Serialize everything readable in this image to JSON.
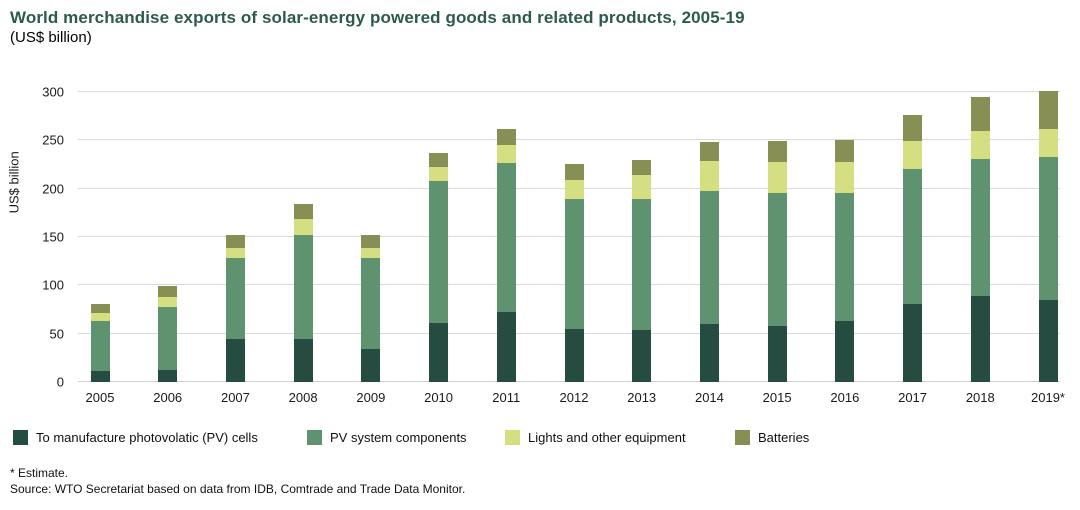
{
  "header": {
    "title": "World merchandise exports of solar-energy powered goods and related products, 2005-19",
    "subtitle": "(US$ billion)"
  },
  "chart_data": {
    "type": "bar",
    "stacked": true,
    "title": "World merchandise exports of solar-energy powered goods and related products, 2005-19 (US$ billion)",
    "xlabel": "",
    "ylabel": "US$ billion",
    "ylim": [
      0,
      300
    ],
    "yticks": [
      0,
      50,
      100,
      150,
      200,
      250,
      300
    ],
    "grid": true,
    "legend_position": "bottom",
    "categories": [
      "2005",
      "2006",
      "2007",
      "2008",
      "2009",
      "2010",
      "2011",
      "2012",
      "2013",
      "2014",
      "2015",
      "2016",
      "2017",
      "2018",
      "2019*"
    ],
    "series": [
      {
        "name": "To manufacture photovolatic (PV) cells",
        "color": "#264c41",
        "values": [
          11,
          12,
          44,
          45,
          34,
          61,
          72,
          55,
          54,
          60,
          58,
          63,
          81,
          89,
          85
        ]
      },
      {
        "name": "PV system components",
        "color": "#5f936f",
        "values": [
          52,
          66,
          84,
          107,
          94,
          147,
          155,
          134,
          135,
          138,
          138,
          133,
          139,
          142,
          148
        ]
      },
      {
        "name": "Lights and other equipment",
        "color": "#d5de81",
        "values": [
          8,
          10,
          11,
          17,
          11,
          14,
          18,
          20,
          25,
          31,
          32,
          32,
          29,
          29,
          29
        ]
      },
      {
        "name": "Batteries",
        "color": "#878f55",
        "values": [
          10,
          11,
          13,
          15,
          13,
          15,
          17,
          17,
          16,
          19,
          21,
          22,
          27,
          35,
          39
        ]
      }
    ],
    "totals": [
      81,
      99,
      152,
      184,
      152,
      237,
      262,
      226,
      230,
      248,
      249,
      250,
      276,
      295,
      301
    ]
  },
  "footnotes": {
    "estimate": "* Estimate.",
    "source": "Source: WTO Secretariat based on data from IDB, Comtrade and Trade Data Monitor."
  },
  "colors": {
    "title": "#2d5a4e",
    "grid": "#d9d9d9",
    "text": "#1a1a1a"
  }
}
